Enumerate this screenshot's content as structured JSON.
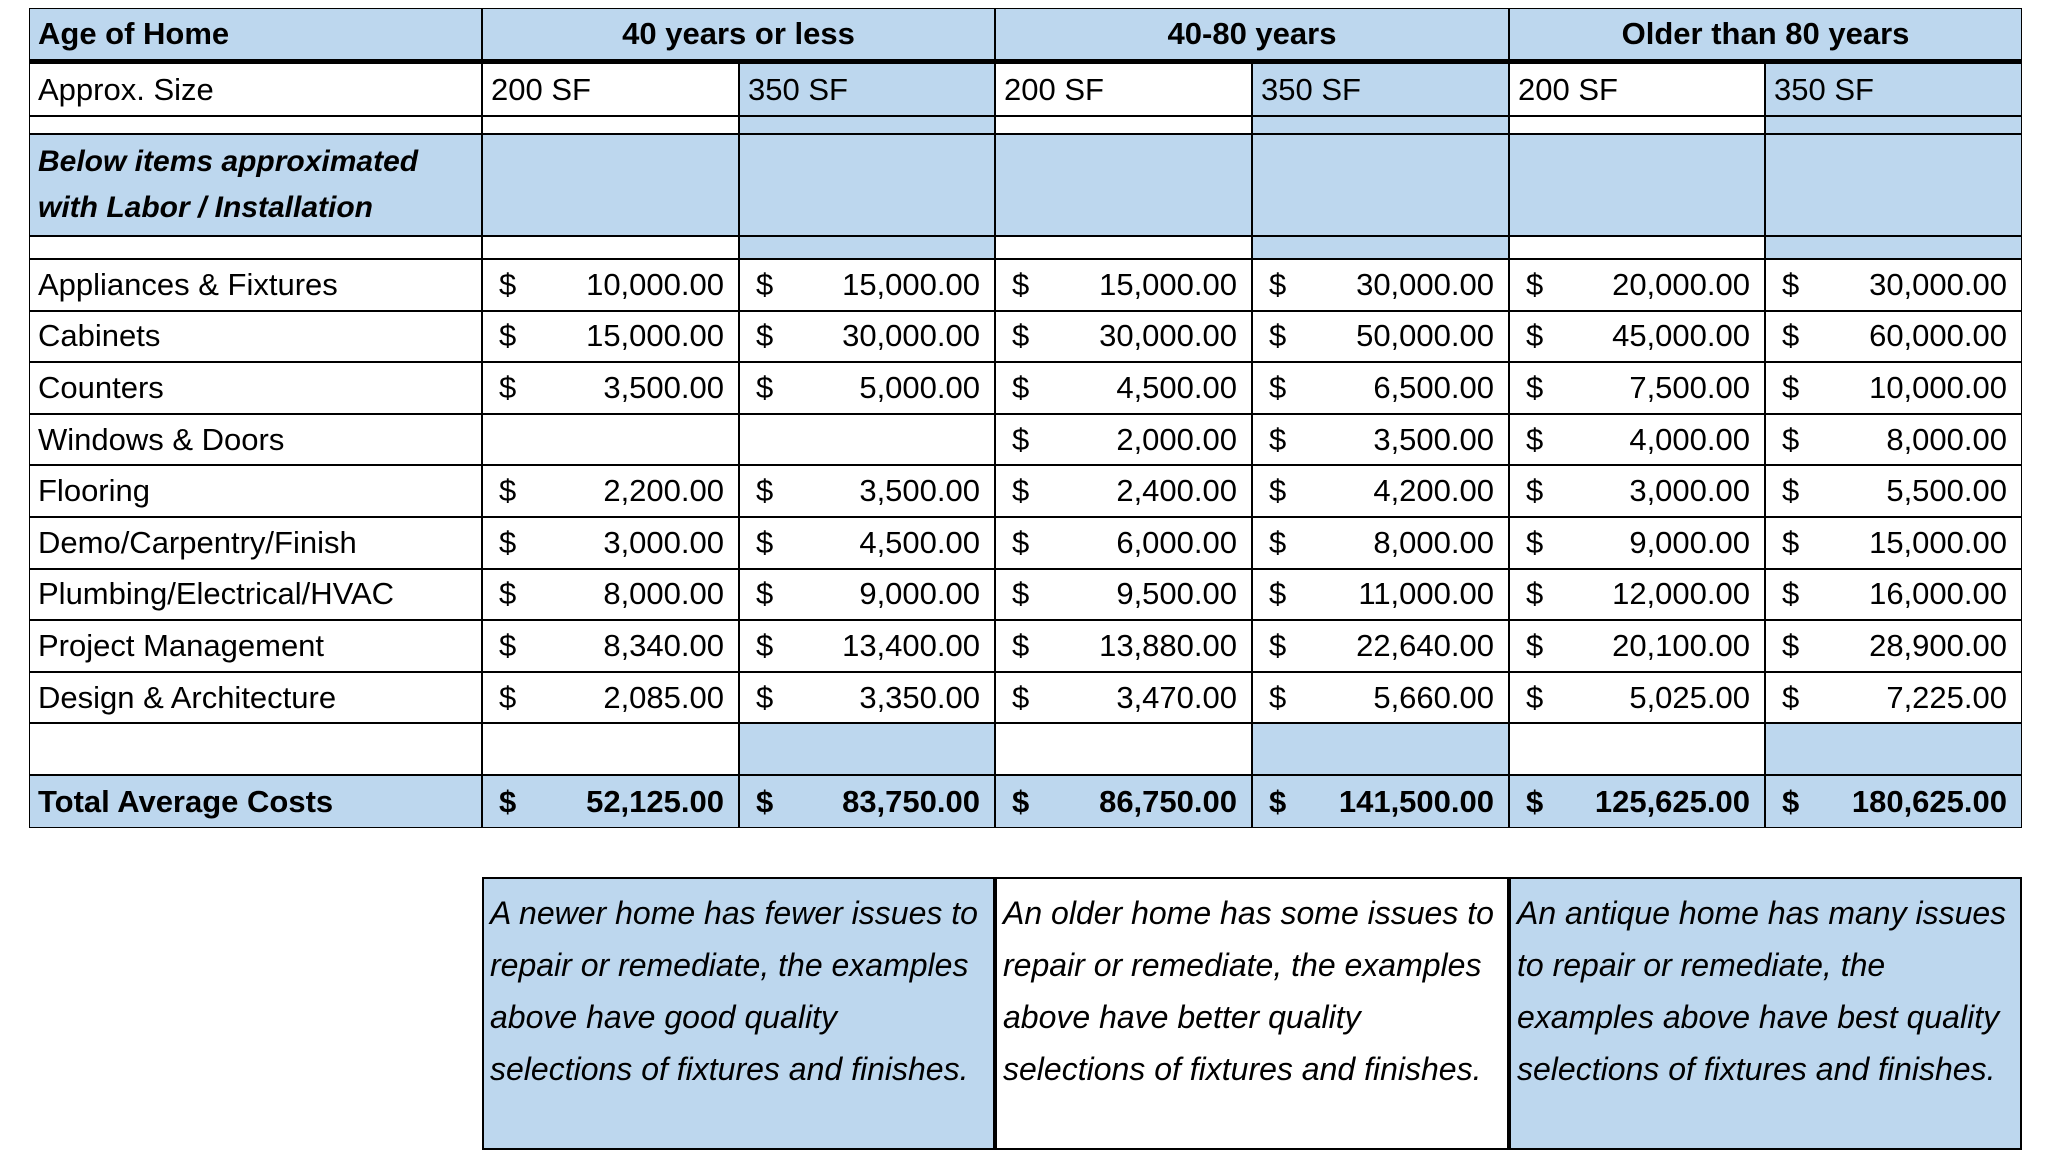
{
  "header": {
    "label": "Age of Home",
    "groups": [
      "40 years or less",
      "40-80 years",
      "Older than 80 years"
    ]
  },
  "size_row": {
    "label": "Approx. Size",
    "sizes": [
      "200 SF",
      "350 SF",
      "200 SF",
      "350 SF",
      "200 SF",
      "350 SF"
    ]
  },
  "note": "Below items approximated with Labor / Installation",
  "currency": "$",
  "rows": [
    {
      "label": "Appliances & Fixtures",
      "values": [
        "10,000.00",
        "15,000.00",
        "15,000.00",
        "30,000.00",
        "20,000.00",
        "30,000.00"
      ]
    },
    {
      "label": "Cabinets",
      "values": [
        "15,000.00",
        "30,000.00",
        "30,000.00",
        "50,000.00",
        "45,000.00",
        "60,000.00"
      ]
    },
    {
      "label": "Counters",
      "values": [
        "3,500.00",
        "5,000.00",
        "4,500.00",
        "6,500.00",
        "7,500.00",
        "10,000.00"
      ]
    },
    {
      "label": "Windows & Doors",
      "values": [
        null,
        null,
        "2,000.00",
        "3,500.00",
        "4,000.00",
        "8,000.00"
      ]
    },
    {
      "label": "Flooring",
      "values": [
        "2,200.00",
        "3,500.00",
        "2,400.00",
        "4,200.00",
        "3,000.00",
        "5,500.00"
      ]
    },
    {
      "label": "Demo/Carpentry/Finish",
      "values": [
        "3,000.00",
        "4,500.00",
        "6,000.00",
        "8,000.00",
        "9,000.00",
        "15,000.00"
      ]
    },
    {
      "label": "Plumbing/Electrical/HVAC",
      "values": [
        "8,000.00",
        "9,000.00",
        "9,500.00",
        "11,000.00",
        "12,000.00",
        "16,000.00"
      ]
    },
    {
      "label": "Project Management",
      "values": [
        "8,340.00",
        "13,400.00",
        "13,880.00",
        "22,640.00",
        "20,100.00",
        "28,900.00"
      ]
    },
    {
      "label": "Design & Architecture",
      "values": [
        "2,085.00",
        "3,350.00",
        "3,470.00",
        "5,660.00",
        "5,025.00",
        "7,225.00"
      ]
    }
  ],
  "total": {
    "label": "Total Average Costs",
    "values": [
      "52,125.00",
      "83,750.00",
      "86,750.00",
      "141,500.00",
      "125,625.00",
      "180,625.00"
    ]
  },
  "descriptions": [
    "A newer home has fewer issues to repair or remediate, the examples above have good quality selections of fixtures and finishes.",
    "An older home has some issues to repair or remediate, the examples above have better quality selections of fixtures and finishes.",
    "An antique home has many issues to repair or remediate, the examples above have best quality selections of fixtures and finishes."
  ]
}
